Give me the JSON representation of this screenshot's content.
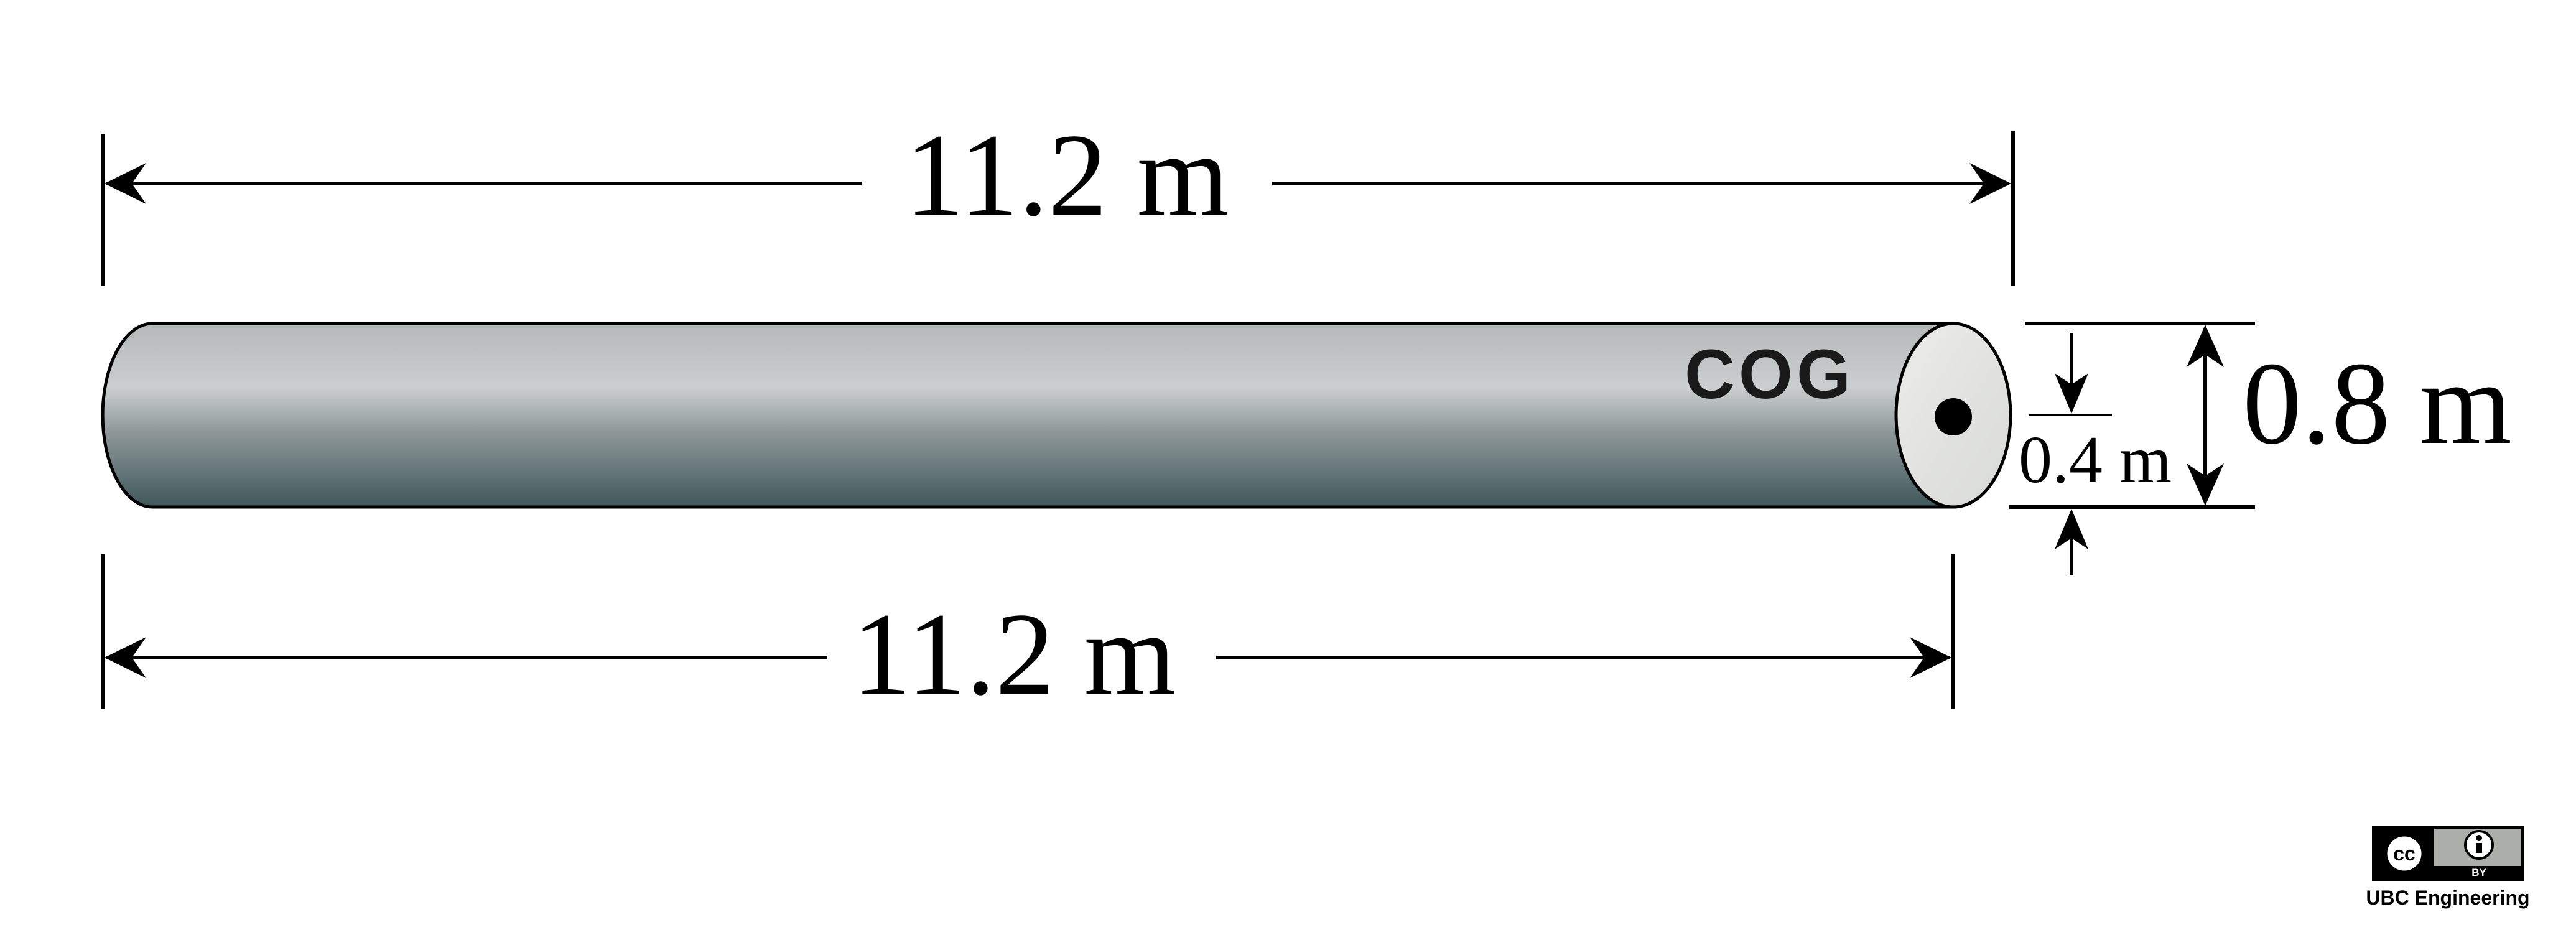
{
  "dimensions": {
    "top_length": "11.2 m",
    "bottom_length": "11.2 m",
    "diameter": "0.8 m",
    "radius": "0.4 m"
  },
  "labels": {
    "center_of_gravity": "COG"
  },
  "badge": {
    "license_cc": "cc",
    "license_by": "BY",
    "credit": "UBC Engineering"
  },
  "colors": {
    "cylinder_light": "#c9cccd",
    "cylinder_dark": "#425b5e",
    "end_cap": "#e4e5e3",
    "line": "#000000"
  }
}
